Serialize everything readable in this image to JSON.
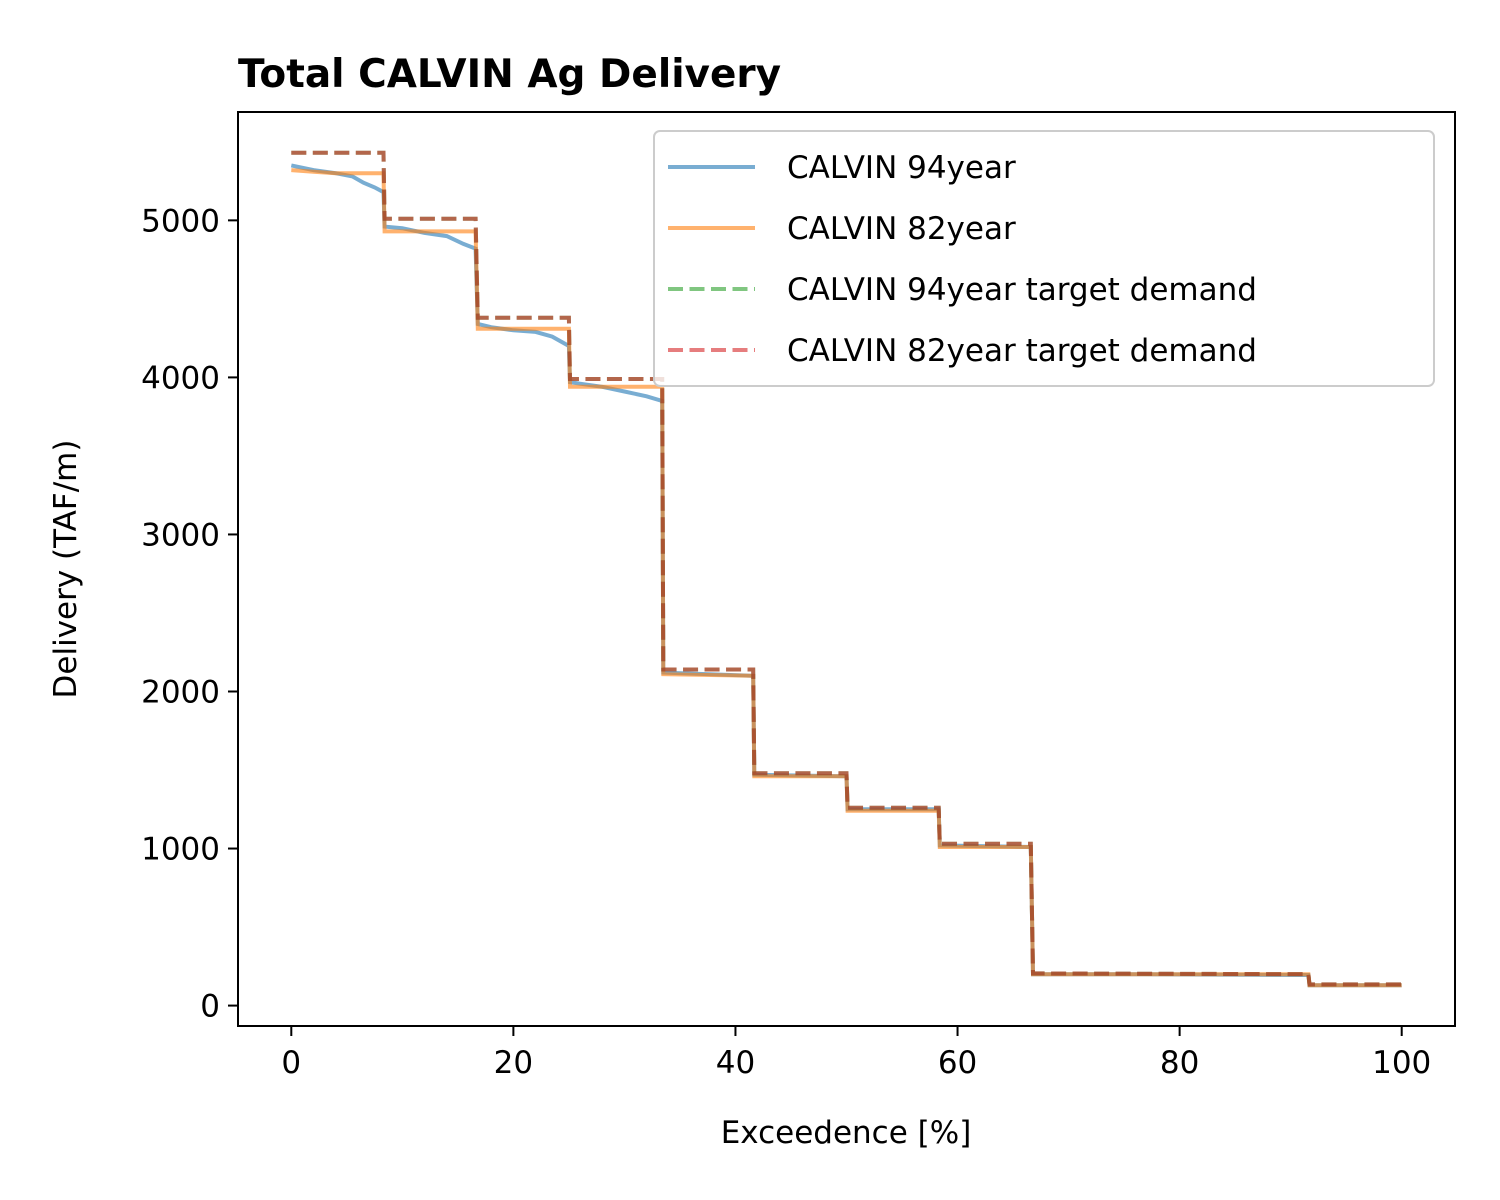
{
  "chart_data": {
    "type": "line",
    "title": "Total CALVIN Ag Delivery",
    "xlabel": "Exceedence [%]",
    "ylabel": "Delivery (TAF/m)",
    "xlim": [
      -4.8,
      104.8
    ],
    "ylim": [
      -130,
      5690
    ],
    "xticks": [
      0,
      20,
      40,
      60,
      80,
      100
    ],
    "yticks": [
      0,
      1000,
      2000,
      3000,
      4000,
      5000
    ],
    "legend_position": "upper right",
    "grid": false,
    "series": [
      {
        "name": "CALVIN 94year",
        "color": "#1f77b4",
        "dash": "solid",
        "points": [
          [
            0,
            5350
          ],
          [
            2,
            5320
          ],
          [
            4,
            5300
          ],
          [
            5.5,
            5280
          ],
          [
            6.5,
            5240
          ],
          [
            7.5,
            5210
          ],
          [
            8.3,
            5180
          ],
          [
            8.4,
            4960
          ],
          [
            10,
            4950
          ],
          [
            12,
            4920
          ],
          [
            14,
            4900
          ],
          [
            15.5,
            4850
          ],
          [
            16.6,
            4820
          ],
          [
            16.8,
            4340
          ],
          [
            18,
            4320
          ],
          [
            20,
            4300
          ],
          [
            22,
            4290
          ],
          [
            23.5,
            4260
          ],
          [
            25,
            4200
          ],
          [
            25.1,
            3970
          ],
          [
            26,
            3960
          ],
          [
            28,
            3940
          ],
          [
            30,
            3910
          ],
          [
            32,
            3880
          ],
          [
            33.4,
            3850
          ],
          [
            33.5,
            2120
          ],
          [
            41.6,
            2100
          ],
          [
            41.7,
            1470
          ],
          [
            50,
            1460
          ],
          [
            50.1,
            1250
          ],
          [
            58.3,
            1250
          ],
          [
            58.4,
            1020
          ],
          [
            66.6,
            1010
          ],
          [
            66.8,
            200
          ],
          [
            75,
            200
          ],
          [
            91.6,
            195
          ],
          [
            91.7,
            130
          ],
          [
            100,
            130
          ]
        ]
      },
      {
        "name": "CALVIN 82year",
        "color": "#ff7f0e",
        "dash": "solid",
        "points": [
          [
            0,
            5320
          ],
          [
            2,
            5310
          ],
          [
            4,
            5300
          ],
          [
            6,
            5300
          ],
          [
            8.3,
            5300
          ],
          [
            8.4,
            4930
          ],
          [
            16.6,
            4930
          ],
          [
            16.8,
            4310
          ],
          [
            25,
            4310
          ],
          [
            25.1,
            3940
          ],
          [
            33.4,
            3940
          ],
          [
            33.5,
            2110
          ],
          [
            41.6,
            2100
          ],
          [
            41.7,
            1460
          ],
          [
            50,
            1460
          ],
          [
            50.1,
            1240
          ],
          [
            58.3,
            1240
          ],
          [
            58.4,
            1010
          ],
          [
            66.6,
            1010
          ],
          [
            66.8,
            200
          ],
          [
            75,
            200
          ],
          [
            91.6,
            200
          ],
          [
            91.7,
            130
          ],
          [
            100,
            130
          ]
        ]
      },
      {
        "name": "CALVIN 94year target demand",
        "color": "#2ca02c",
        "dash": "dashed",
        "points": [
          [
            0,
            5430
          ],
          [
            8.3,
            5430
          ],
          [
            8.4,
            5010
          ],
          [
            16.6,
            5010
          ],
          [
            16.8,
            4380
          ],
          [
            25,
            4380
          ],
          [
            25.1,
            3990
          ],
          [
            33.4,
            3990
          ],
          [
            33.5,
            2140
          ],
          [
            41.6,
            2140
          ],
          [
            41.7,
            1480
          ],
          [
            50,
            1480
          ],
          [
            50.1,
            1260
          ],
          [
            58.3,
            1260
          ],
          [
            58.4,
            1030
          ],
          [
            66.6,
            1030
          ],
          [
            66.8,
            205
          ],
          [
            91.6,
            200
          ],
          [
            91.7,
            135
          ],
          [
            100,
            135
          ]
        ]
      },
      {
        "name": "CALVIN 82year target demand",
        "color": "#d62728",
        "dash": "dashed",
        "points": [
          [
            0,
            5430
          ],
          [
            8.3,
            5430
          ],
          [
            8.4,
            5010
          ],
          [
            16.6,
            5010
          ],
          [
            16.8,
            4380
          ],
          [
            25,
            4380
          ],
          [
            25.1,
            3990
          ],
          [
            33.4,
            3990
          ],
          [
            33.5,
            2140
          ],
          [
            41.6,
            2140
          ],
          [
            41.7,
            1480
          ],
          [
            50,
            1480
          ],
          [
            50.1,
            1260
          ],
          [
            58.3,
            1260
          ],
          [
            58.4,
            1030
          ],
          [
            66.6,
            1030
          ],
          [
            66.8,
            205
          ],
          [
            91.6,
            200
          ],
          [
            91.7,
            135
          ],
          [
            100,
            135
          ]
        ]
      }
    ]
  }
}
